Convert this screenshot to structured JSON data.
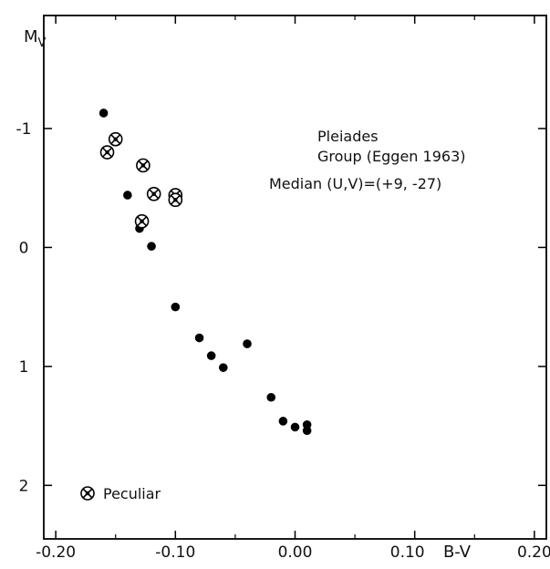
{
  "chart_data": {
    "type": "scatter",
    "xlabel": "B-V",
    "ylabel": "Mv",
    "ylabel_main": "M",
    "ylabel_sub": "V",
    "xlim": [
      -0.21,
      0.21
    ],
    "ylim": [
      2.45,
      -1.95
    ],
    "y_inverted": true,
    "x_ticks": [
      -0.2,
      -0.1,
      0.0,
      0.1,
      0.2
    ],
    "x_tick_labels": [
      "-0.20",
      "-0.10",
      "0.00",
      "0.10",
      "0.20"
    ],
    "y_ticks": [
      -1,
      0,
      1,
      2
    ],
    "y_tick_labels": [
      "-1",
      "0",
      "1",
      "2"
    ],
    "grid": false,
    "annotations": [
      "Pleiades",
      "Group (Eggen 1963)",
      "Median (U,V)=(+9, -27)"
    ],
    "legend": {
      "position": "bottom-left",
      "label": "Peculiar",
      "marker": "circled-x"
    },
    "series": [
      {
        "marker": "filled-circle",
        "points": [
          [
            -0.16,
            -1.13
          ],
          [
            -0.14,
            -0.44
          ],
          [
            -0.13,
            -0.16
          ],
          [
            -0.12,
            -0.01
          ],
          [
            -0.1,
            0.5
          ],
          [
            -0.08,
            0.76
          ],
          [
            -0.07,
            0.91
          ],
          [
            -0.06,
            1.01
          ],
          [
            -0.04,
            0.81
          ],
          [
            -0.02,
            1.26
          ],
          [
            -0.01,
            1.46
          ],
          [
            0.0,
            1.51
          ],
          [
            0.01,
            1.49
          ],
          [
            0.01,
            1.54
          ]
        ]
      },
      {
        "name": "Peculiar",
        "marker": "circled-x",
        "points": [
          [
            -0.15,
            -0.91
          ],
          [
            -0.157,
            -0.8
          ],
          [
            -0.127,
            -0.69
          ],
          [
            -0.118,
            -0.45
          ],
          [
            -0.1,
            -0.44
          ],
          [
            -0.1,
            -0.4
          ],
          [
            -0.128,
            -0.22
          ]
        ]
      }
    ]
  }
}
